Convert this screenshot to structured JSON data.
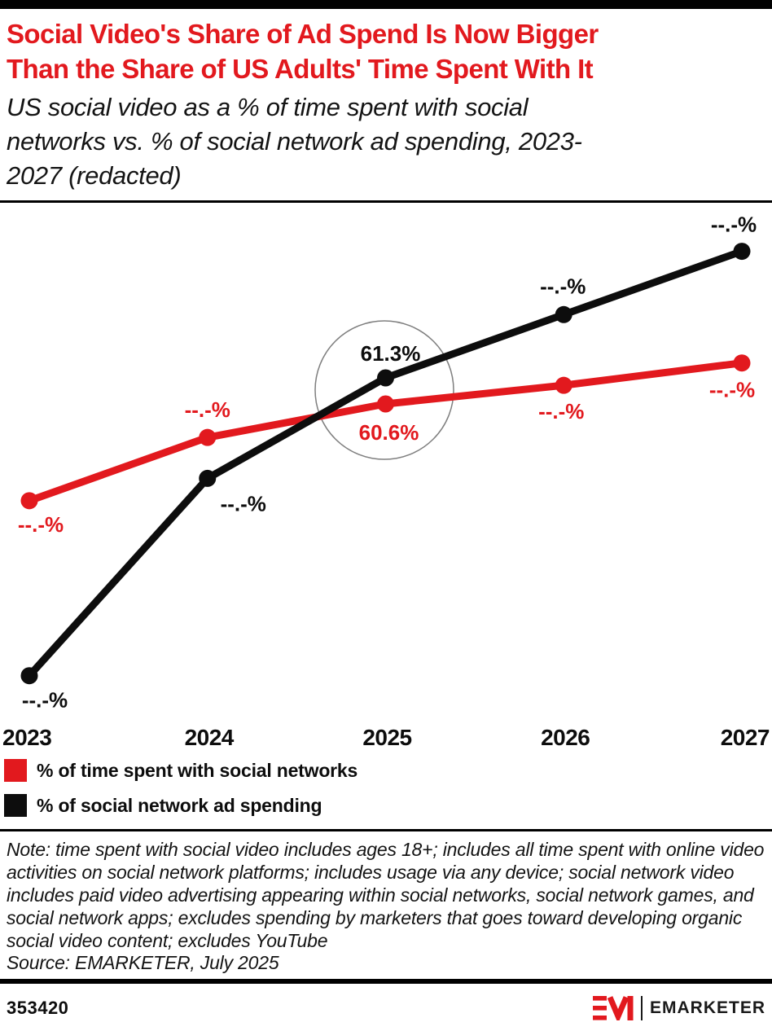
{
  "header": {
    "title_lines": [
      "Social Video's Share of Ad Spend Is Now Bigger",
      "Than the Share of US Adults' Time Spent With It"
    ],
    "subtitle_lines": [
      "US social video as a % of time spent with social",
      "networks vs. % of social network ad spending, 2023-",
      "2027 (redacted)"
    ]
  },
  "chart_data": {
    "type": "line",
    "title": "Social Video's Share of Ad Spend Is Now Bigger Than the Share of US Adults' Time Spent With It",
    "subtitle": "US social video as a % of time spent with social networks vs. % of social network ad spending, 2023-2027 (redacted)",
    "x_labels": [
      "2023",
      "2024",
      "2025",
      "2026",
      "2027"
    ],
    "series": [
      {
        "name": "% of time spent with social networks",
        "color": "#e2191e",
        "values_est": [
          58.0,
          59.7,
          60.6,
          61.1,
          61.7
        ],
        "point_labels": [
          "--.-%",
          "--.-%",
          "60.6%",
          "--.-%",
          "--.-%"
        ],
        "label_offsets": [
          {
            "dx": 14,
            "dy": 38
          },
          {
            "dx": 0,
            "dy": -25
          },
          {
            "dx": 4,
            "dy": 44
          },
          {
            "dx": -3,
            "dy": 41
          },
          {
            "dx": -12,
            "dy": 42
          }
        ]
      },
      {
        "name": "% of social network ad spending",
        "color": "#0d0d0d",
        "values_est": [
          53.3,
          58.6,
          61.3,
          63.0,
          64.7
        ],
        "point_labels": [
          "--.-%",
          "--.-%",
          "61.3%",
          "--.-%",
          "--.-%"
        ],
        "label_offsets": [
          {
            "dx": 19,
            "dy": 39
          },
          {
            "dx": 44,
            "dy": 40
          },
          {
            "dx": 6,
            "dy": -21
          },
          {
            "dx": -1,
            "dy": -26
          },
          {
            "dx": -10,
            "dy": -24
          }
        ]
      }
    ],
    "visible_values_note": "Only the 2025 values (61.3% and 60.6%) are printed; every other point label is redacted as --.-%; values_est are estimated from point positions",
    "ylim_est": [
      52,
      66
    ],
    "grid": false,
    "legend_position": "bottom-left",
    "annotation_circle": {
      "year": "2025",
      "color": "#7f7f7f"
    }
  },
  "note": "Note: time spent with social video includes ages 18+; includes all time spent with online video activities on social network platforms; includes usage via any device; social network video includes paid video advertising appearing within social networks, social network games, and social network apps; excludes spending by marketers that goes toward developing organic social video content; excludes YouTube",
  "source": "Source: EMARKETER, July 2025",
  "footer": {
    "chart_id": "353420",
    "brand_wordmark": "EMARKETER"
  },
  "colors": {
    "brand_red": "#e2191e",
    "black": "#0d0d0d",
    "circle_gray": "#7f7f7f"
  }
}
